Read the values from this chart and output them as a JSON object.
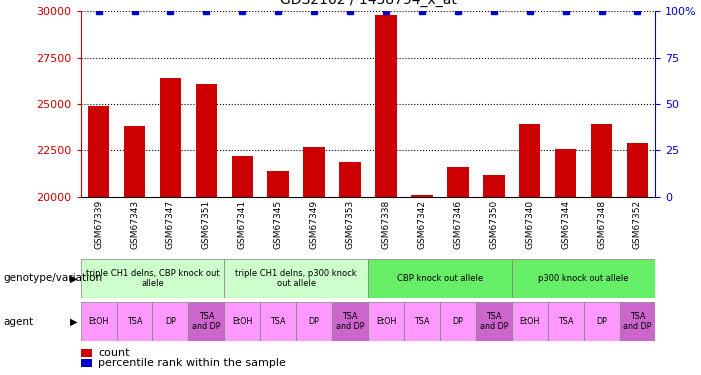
{
  "title": "GDS2162 / 1438794_x_at",
  "samples": [
    "GSM67339",
    "GSM67343",
    "GSM67347",
    "GSM67351",
    "GSM67341",
    "GSM67345",
    "GSM67349",
    "GSM67353",
    "GSM67338",
    "GSM67342",
    "GSM67346",
    "GSM67350",
    "GSM67340",
    "GSM67344",
    "GSM67348",
    "GSM67352"
  ],
  "counts": [
    24900,
    23800,
    26400,
    26100,
    22200,
    21400,
    22700,
    21900,
    29800,
    20100,
    21600,
    21200,
    23900,
    22600,
    23900,
    22900
  ],
  "percentiles": [
    100,
    100,
    100,
    100,
    100,
    100,
    100,
    100,
    100,
    100,
    100,
    100,
    100,
    100,
    100,
    100
  ],
  "ymin": 20000,
  "ymax": 30000,
  "yticks": [
    20000,
    22500,
    25000,
    27500,
    30000
  ],
  "right_yticks": [
    0,
    25,
    50,
    75,
    100
  ],
  "bar_color": "#cc0000",
  "percentile_color": "#0000cc",
  "grid_color": "#000000",
  "background_color": "#ffffff",
  "genotype_groups": [
    {
      "label": "triple CH1 delns, CBP knock out\nallele",
      "start": 0,
      "end": 4,
      "color": "#ccffcc"
    },
    {
      "label": "triple CH1 delns, p300 knock\nout allele",
      "start": 4,
      "end": 8,
      "color": "#ccffcc"
    },
    {
      "label": "CBP knock out allele",
      "start": 8,
      "end": 12,
      "color": "#66ee66"
    },
    {
      "label": "p300 knock out allele",
      "start": 12,
      "end": 16,
      "color": "#66ee66"
    }
  ],
  "agent_labels": [
    "EtOH",
    "TSA",
    "DP",
    "TSA\nand DP",
    "EtOH",
    "TSA",
    "DP",
    "TSA\nand DP",
    "EtOH",
    "TSA",
    "DP",
    "TSA\nand DP",
    "EtOH",
    "TSA",
    "DP",
    "TSA\nand DP"
  ],
  "tick_label_color": "#cc0000",
  "right_axis_color": "#0000cc",
  "left_label": "genotype/variation",
  "agent_label": "agent",
  "legend_count_color": "#cc0000",
  "legend_percentile_color": "#0000cc"
}
